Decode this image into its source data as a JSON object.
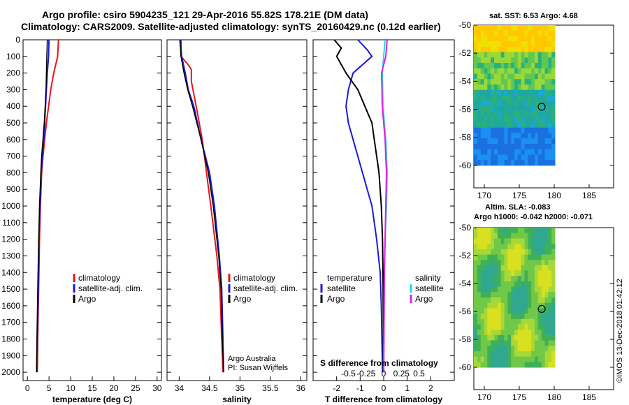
{
  "header": {
    "title_line1": "Argo profile: csiro 5904235_121 29-Apr-2016 55.82S 178.21E (DM data)",
    "title_line2": "Climatology: CARS2009. Satellite-adjusted climatology: synTS_20160429.nc (0.12d earlier)"
  },
  "colors": {
    "climatology": "#e8141c",
    "satellite": "#1a1ad8",
    "argo": "#000000",
    "sat_salinity": "#22d8e8",
    "argo_salinity": "#e020e0"
  },
  "legends": {
    "profile": [
      "climatology",
      "satellite-adj. clim.",
      "Argo"
    ],
    "diff_temperature_heading": "temperature",
    "diff_salinity_heading": "salinity",
    "diff_items": [
      "satellite",
      "Argo"
    ]
  },
  "notes": {
    "credit1": "Argo Australia",
    "credit2": "PI: Susan Wijffels",
    "s_diff_label": "S difference from climatology",
    "imos": "©IMOS 13-Dec-2018 01:42:12"
  },
  "maps": {
    "sst_title": "sat. SST: 6.53 Argo: 4.68",
    "sla_title1": "Altim. SLA: -0.083",
    "sla_title2": "Argo h1000: -0.042 h2000: -0.071",
    "yticks": [
      "-50",
      "-52",
      "-54",
      "-56",
      "-58",
      "-60"
    ],
    "xticks": [
      "170",
      "175",
      "180",
      "185"
    ],
    "marker_lon": 178.21,
    "marker_lat": -55.82
  },
  "chart_data": [
    {
      "type": "line",
      "xlabel": "temperature (deg C)",
      "xlim": [
        -1,
        31
      ],
      "ylim": [
        2050,
        0
      ],
      "xticks": [
        0,
        5,
        10,
        15,
        20,
        25,
        30
      ],
      "yticks": [
        0,
        100,
        200,
        300,
        400,
        500,
        600,
        700,
        800,
        900,
        1000,
        1100,
        1200,
        1300,
        1400,
        1500,
        1600,
        1700,
        1800,
        1900,
        2000
      ],
      "series": [
        {
          "name": "climatology",
          "depth": [
            0,
            100,
            200,
            300,
            400,
            500,
            600,
            700,
            800,
            1000,
            1200,
            1500,
            1800,
            2000
          ],
          "values": [
            7.2,
            7.0,
            6.1,
            5.4,
            4.9,
            4.4,
            4.0,
            3.6,
            3.3,
            3.0,
            2.8,
            2.6,
            2.4,
            2.3
          ]
        },
        {
          "name": "satellite-adj. clim.",
          "depth": [
            0,
            100,
            200,
            300,
            400,
            500,
            600,
            700,
            800,
            1000,
            1200,
            1500,
            1800,
            2000
          ],
          "values": [
            5.0,
            4.9,
            4.6,
            4.4,
            4.2,
            4.0,
            3.8,
            3.5,
            3.2,
            2.9,
            2.7,
            2.5,
            2.3,
            2.2
          ]
        },
        {
          "name": "Argo",
          "depth": [
            0,
            100,
            200,
            300,
            400,
            500,
            600,
            700,
            800,
            1000,
            1200,
            1500,
            1800,
            2000
          ],
          "values": [
            4.6,
            4.5,
            4.4,
            4.3,
            4.1,
            3.9,
            3.6,
            3.3,
            3.1,
            2.8,
            2.6,
            2.4,
            2.2,
            2.1
          ]
        }
      ]
    },
    {
      "type": "line",
      "xlabel": "salinity",
      "xlim": [
        33.8,
        36.1
      ],
      "ylim": [
        2050,
        0
      ],
      "xticks": [
        34,
        34.5,
        35,
        35.5,
        36
      ],
      "series": [
        {
          "name": "climatology",
          "depth": [
            0,
            100,
            150,
            180,
            250,
            400,
            600,
            800,
            1000,
            1300,
            1500,
            1800,
            2000
          ],
          "values": [
            34.03,
            34.03,
            34.15,
            34.2,
            34.2,
            34.28,
            34.38,
            34.45,
            34.52,
            34.62,
            34.67,
            34.7,
            34.72
          ]
        },
        {
          "name": "satellite-adj. clim.",
          "depth": [
            0,
            100,
            200,
            300,
            400,
            600,
            800,
            1000,
            1300,
            1500,
            1800,
            2000
          ],
          "values": [
            34.02,
            34.04,
            34.1,
            34.15,
            34.24,
            34.36,
            34.5,
            34.58,
            34.66,
            34.7,
            34.72,
            34.73
          ]
        },
        {
          "name": "Argo",
          "depth": [
            0,
            100,
            200,
            300,
            400,
            600,
            800,
            1000,
            1300,
            1500,
            1800,
            2000
          ],
          "values": [
            34.01,
            34.03,
            34.08,
            34.14,
            34.22,
            34.36,
            34.48,
            34.56,
            34.65,
            34.69,
            34.71,
            34.73
          ]
        }
      ]
    },
    {
      "type": "line",
      "xlabel": "T difference from climatology",
      "xlim": [
        -3,
        3
      ],
      "ylim": [
        2050,
        0
      ],
      "xticks": [
        -2,
        -1,
        0,
        1,
        2
      ],
      "s_xticks": [
        "-0.5",
        "-0.25",
        "0",
        "0.25",
        "0.5"
      ],
      "series": [
        {
          "name": "temperature satellite",
          "depth": [
            0,
            60,
            100,
            200,
            300,
            400,
            500,
            600,
            800,
            1000,
            1200,
            1400,
            1600,
            2000
          ],
          "values": [
            -1.1,
            -0.7,
            -0.5,
            -1.3,
            -1.5,
            -1.6,
            -1.5,
            -1.3,
            -0.9,
            -0.5,
            -0.3,
            -0.15,
            -0.1,
            -0.05
          ]
        },
        {
          "name": "temperature Argo",
          "depth": [
            0,
            50,
            100,
            200,
            300,
            400,
            500,
            600,
            800,
            1000,
            1200,
            1400,
            1600,
            2000
          ],
          "values": [
            -2.1,
            -1.8,
            -2.0,
            -1.6,
            -1.1,
            -0.8,
            -0.5,
            -0.4,
            -0.2,
            -0.1,
            -0.05,
            -0.03,
            -0.02,
            -0.01
          ]
        },
        {
          "name": "salinity satellite",
          "depth": [
            0,
            100,
            200,
            400,
            600,
            800,
            1000,
            1200,
            1400,
            2000
          ],
          "values": [
            0.02,
            0.0,
            -0.02,
            -0.01,
            0.03,
            0.05,
            0.04,
            0.02,
            0.01,
            0.0
          ]
        },
        {
          "name": "salinity Argo",
          "depth": [
            0,
            100,
            200,
            400,
            600,
            800,
            1000,
            1200,
            1400,
            2000
          ],
          "values": [
            0.05,
            0.03,
            -0.03,
            -0.02,
            0.02,
            0.04,
            0.03,
            0.02,
            0.01,
            0.0
          ]
        }
      ]
    }
  ]
}
